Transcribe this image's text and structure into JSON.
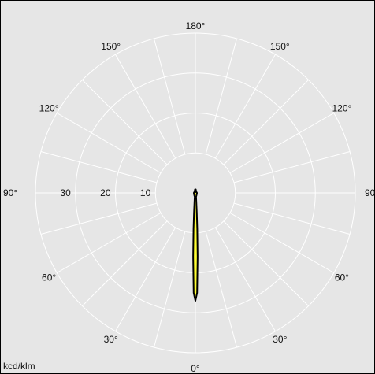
{
  "chart_data": {
    "type": "polar",
    "unit_label": "kcd/klm",
    "radial_tick_labels": [
      "10",
      "20",
      "30"
    ],
    "radial_rings": [
      10,
      20,
      30,
      40
    ],
    "radial_max": 40,
    "angle_tick_labels": [
      {
        "text": "0°",
        "angle": 0
      },
      {
        "text": "30°",
        "angle": 30
      },
      {
        "text": "30°",
        "angle": -30
      },
      {
        "text": "60°",
        "angle": 60
      },
      {
        "text": "60°",
        "angle": -60
      },
      {
        "text": "90°",
        "angle": 90
      },
      {
        "text": "90°",
        "angle": -90
      },
      {
        "text": "120°",
        "angle": 120
      },
      {
        "text": "120°",
        "angle": -120
      },
      {
        "text": "150°",
        "angle": 150
      },
      {
        "text": "150°",
        "angle": -150
      },
      {
        "text": "180°",
        "angle": 180
      }
    ],
    "spoke_step_deg": 15,
    "grid": true,
    "series": [
      {
        "fill": "#ffff33",
        "stroke": "#000000",
        "points": [
          {
            "angle": 0,
            "r": 27.0
          },
          {
            "angle": 1,
            "r": 25.0
          },
          {
            "angle": 2,
            "r": 16.0
          },
          {
            "angle": 3,
            "r": 9.0
          },
          {
            "angle": 4,
            "r": 5.0
          },
          {
            "angle": 6,
            "r": 2.2
          },
          {
            "angle": 10,
            "r": 1.0
          },
          {
            "angle": 30,
            "r": 0.6
          },
          {
            "angle": 90,
            "r": 0.4
          },
          {
            "angle": 150,
            "r": 0.4
          },
          {
            "angle": 174,
            "r": 0.9
          },
          {
            "angle": 177,
            "r": 0.8
          },
          {
            "angle": 180,
            "r": 0.2
          },
          {
            "angle": -177,
            "r": 0.8
          },
          {
            "angle": -174,
            "r": 0.9
          },
          {
            "angle": -150,
            "r": 0.4
          },
          {
            "angle": -90,
            "r": 0.4
          },
          {
            "angle": -30,
            "r": 0.6
          },
          {
            "angle": -10,
            "r": 1.0
          },
          {
            "angle": -6,
            "r": 2.2
          },
          {
            "angle": -4,
            "r": 5.0
          },
          {
            "angle": -3,
            "r": 9.0
          },
          {
            "angle": -2,
            "r": 16.0
          },
          {
            "angle": -1,
            "r": 25.0
          }
        ]
      }
    ],
    "colors": {
      "background": "#e6e6e6",
      "grid": "#ffffff",
      "border": "#000000"
    }
  }
}
